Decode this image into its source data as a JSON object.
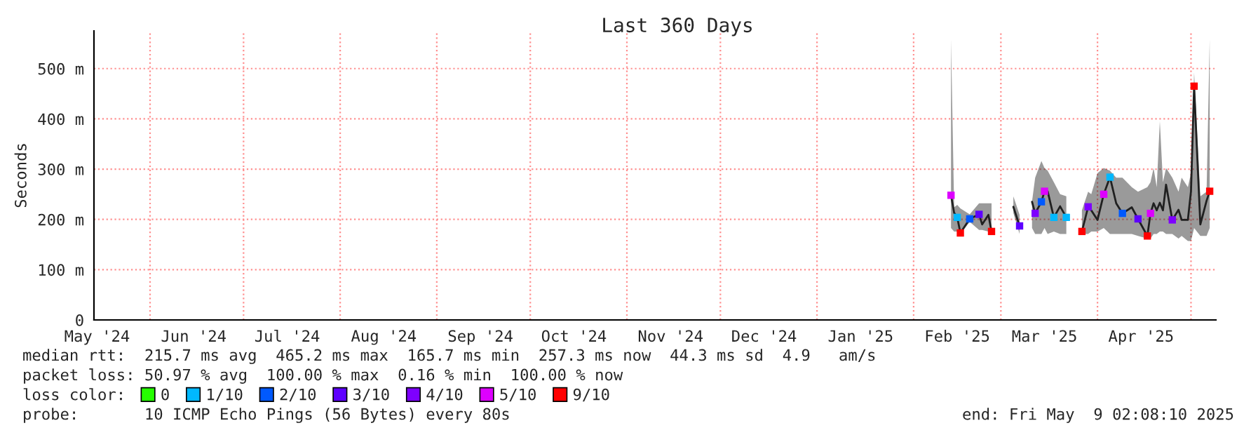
{
  "chart_data": {
    "type": "line",
    "title": "Last 360 Days",
    "ylabel": "Seconds",
    "xlim": [
      "2024-05-14",
      "2025-05-09"
    ],
    "xticks": [
      {
        "value": "2024-05-15",
        "label": "May '24"
      },
      {
        "value": "2024-06-15",
        "label": "Jun '24"
      },
      {
        "value": "2024-07-15",
        "label": "Jul '24"
      },
      {
        "value": "2024-08-15",
        "label": "Aug '24"
      },
      {
        "value": "2024-09-15",
        "label": "Sep '24"
      },
      {
        "value": "2024-10-15",
        "label": "Oct '24"
      },
      {
        "value": "2024-11-15",
        "label": "Nov '24"
      },
      {
        "value": "2024-12-15",
        "label": "Dec '24"
      },
      {
        "value": "2025-01-15",
        "label": "Jan '25"
      },
      {
        "value": "2025-02-15",
        "label": "Feb '25"
      },
      {
        "value": "2025-03-15",
        "label": "Mar '25"
      },
      {
        "value": "2025-04-15",
        "label": "Apr '25"
      }
    ],
    "ylim": [
      0,
      575
    ],
    "yticks": [
      0,
      {
        "value": 100,
        "label": "100 m"
      },
      {
        "value": 200,
        "label": "200 m"
      },
      {
        "value": 300,
        "label": "300 m"
      },
      {
        "value": 400,
        "label": "400 m"
      },
      {
        "value": 500,
        "label": "500 m"
      }
    ],
    "grid": "y",
    "ref_lines": [
      {
        "axis": "x",
        "value": "2024-06-01",
        "color": "#ff9090",
        "line_style": "dotted"
      },
      {
        "axis": "x",
        "value": "2024-07-01",
        "color": "#ff9090",
        "line_style": "dotted"
      },
      {
        "axis": "x",
        "value": "2024-08-01",
        "color": "#ff9090",
        "line_style": "dotted"
      },
      {
        "axis": "x",
        "value": "2024-09-01",
        "color": "#ff9090",
        "line_style": "dotted"
      },
      {
        "axis": "x",
        "value": "2024-10-01",
        "color": "#ff9090",
        "line_style": "dotted"
      },
      {
        "axis": "x",
        "value": "2024-11-01",
        "color": "#ff9090",
        "line_style": "dotted"
      },
      {
        "axis": "x",
        "value": "2024-12-01",
        "color": "#ff9090",
        "line_style": "dotted"
      },
      {
        "axis": "x",
        "value": "2025-01-01",
        "color": "#ff9090",
        "line_style": "dotted"
      },
      {
        "axis": "x",
        "value": "2025-02-01",
        "color": "#ff9090",
        "line_style": "dotted"
      },
      {
        "axis": "x",
        "value": "2025-03-01",
        "color": "#ff9090",
        "line_style": "dotted"
      },
      {
        "axis": "x",
        "value": "2025-04-01",
        "color": "#ff9090",
        "line_style": "dotted"
      },
      {
        "axis": "x",
        "value": "2025-05-01",
        "color": "#ff9090",
        "line_style": "dotted"
      }
    ],
    "series": [
      {
        "color": "#202020",
        "line_style": "solid",
        "marker": "none",
        "x": [
          "2025-02-13",
          "2025-02-14",
          "2025-02-15",
          "2025-02-16",
          "2025-02-19",
          "2025-02-22",
          "2025-02-23",
          "2025-02-25",
          "2025-02-26",
          "2025-03-02",
          "2025-03-05",
          "2025-03-07",
          "2025-03-09",
          "2025-03-11",
          "2025-03-12",
          "2025-03-14",
          "2025-03-15",
          "2025-03-16",
          "2025-03-18",
          "2025-03-20",
          "2025-03-22",
          "2025-03-24",
          "2025-03-27",
          "2025-03-29",
          "2025-03-30",
          "2025-04-01",
          "2025-04-03",
          "2025-04-05",
          "2025-04-07",
          "2025-04-09",
          "2025-04-12",
          "2025-04-14",
          "2025-04-17",
          "2025-04-18",
          "2025-04-19",
          "2025-04-20",
          "2025-04-21",
          "2025-04-22",
          "2025-04-23",
          "2025-04-25",
          "2025-04-27",
          "2025-04-28",
          "2025-04-30",
          "2025-05-01",
          "2025-05-02",
          "2025-05-04",
          "2025-05-06",
          "2025-05-07"
        ],
        "values": [
          248,
          213,
          204,
          173,
          201,
          210,
          190,
          209,
          176,
          null,
          225,
          187,
          null,
          235,
          212,
          235,
          256,
          256,
          204,
          226,
          204,
          null,
          176,
          225,
          218,
          199,
          250,
          284,
          232,
          212,
          224,
          201,
          167,
          212,
          232,
          218,
          233,
          218,
          269,
          199,
          219,
          199,
          199,
          256,
          465,
          190,
          237,
          256
        ],
        "lower": [
          183,
          176,
          176,
          171,
          195,
          179,
          179,
          176,
          176,
          null,
          213,
          171,
          null,
          183,
          171,
          171,
          183,
          171,
          176,
          171,
          171,
          null,
          171,
          171,
          176,
          176,
          183,
          171,
          171,
          171,
          171,
          167,
          162,
          162,
          171,
          171,
          176,
          176,
          171,
          171,
          162,
          167,
          157,
          157,
          183,
          167,
          167,
          183
        ],
        "upper": [
          558,
          224,
          229,
          222,
          210,
          232,
          232,
          232,
          232,
          null,
          246,
          209,
          null,
          236,
          283,
          316,
          302,
          297,
          274,
          250,
          246,
          null,
          218,
          255,
          250,
          292,
          302,
          297,
          283,
          283,
          264,
          255,
          264,
          274,
          302,
          264,
          395,
          274,
          302,
          283,
          255,
          283,
          264,
          292,
          492,
          246,
          255,
          558
        ]
      },
      {
        "type": "scatter",
        "name": "0",
        "color": "#26ff00",
        "marker": "square"
      },
      {
        "type": "scatter",
        "name": "1/10",
        "color": "#00b8ff",
        "marker": "square",
        "x": [
          "2025-02-15",
          "2025-03-18",
          "2025-03-22",
          "2025-04-05"
        ],
        "values": [
          204,
          204,
          204,
          284
        ]
      },
      {
        "type": "scatter",
        "name": "2/10",
        "color": "#0059ff",
        "marker": "square",
        "x": [
          "2025-02-19",
          "2025-03-14",
          "2025-04-09"
        ],
        "values": [
          201,
          235,
          212
        ]
      },
      {
        "type": "scatter",
        "name": "3/10",
        "color": "#5e00ff",
        "marker": "square",
        "x": [
          "2025-02-22",
          "2025-03-07",
          "2025-04-14"
        ],
        "values": [
          210,
          187,
          201
        ]
      },
      {
        "type": "scatter",
        "name": "4/10",
        "color": "#7e00ff",
        "marker": "square",
        "x": [
          "2025-03-12",
          "2025-03-29",
          "2025-04-25"
        ],
        "values": [
          212,
          225,
          199
        ]
      },
      {
        "type": "scatter",
        "name": "5/10",
        "color": "#dd00ff",
        "marker": "square",
        "x": [
          "2025-02-13",
          "2025-03-15",
          "2025-04-03",
          "2025-04-18"
        ],
        "values": [
          248,
          256,
          250,
          212
        ]
      },
      {
        "type": "scatter",
        "name": "9/10",
        "color": "#ff0000",
        "marker": "square",
        "x": [
          "2025-02-16",
          "2025-02-26",
          "2025-03-27",
          "2025-04-17",
          "2025-05-02",
          "2025-05-07"
        ],
        "values": [
          173,
          176,
          176,
          167,
          465,
          256
        ]
      }
    ],
    "legend": "bottom",
    "legend_title": "loss color:",
    "annotations": [
      "median rtt:  215.7 ms avg  465.2 ms max  165.7 ms min  257.3 ms now  44.3 ms sd  4.9   am/s",
      "packet loss: 50.97 % avg  100.00 % max  0.16 % min  100.00 % now",
      "probe:       10 ICMP Echo Pings (56 Bytes) every 80s",
      "end: Fri May  9 02:08:10 2025"
    ]
  }
}
